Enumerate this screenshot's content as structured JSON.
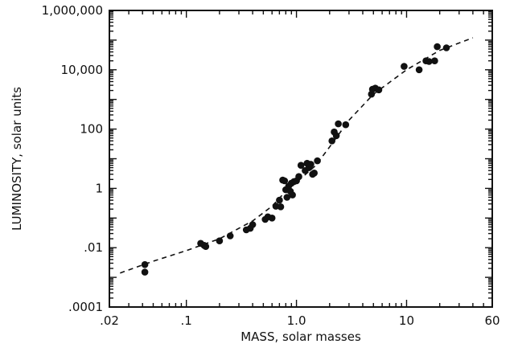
{
  "chart_data": {
    "type": "scatter",
    "title": "",
    "xlabel": "MASS, solar masses",
    "ylabel": "LUMINOSITY, solar units",
    "xscale": "log",
    "yscale": "log",
    "xlim": [
      0.02,
      60
    ],
    "ylim": [
      0.0001,
      1000000
    ],
    "x_ticks": [
      {
        "value": 0.02,
        "label": ".02"
      },
      {
        "value": 0.1,
        "label": ".1"
      },
      {
        "value": 1,
        "label": "1.0"
      },
      {
        "value": 10,
        "label": "10"
      },
      {
        "value": 60,
        "label": "60"
      }
    ],
    "y_ticks": [
      {
        "value": 0.0001,
        "label": ".0001"
      },
      {
        "value": 0.01,
        "label": ".01"
      },
      {
        "value": 1,
        "label": "1"
      },
      {
        "value": 100,
        "label": "100"
      },
      {
        "value": 10000,
        "label": "10,000"
      },
      {
        "value": 1000000,
        "label": "1,000,000"
      }
    ],
    "grid": false,
    "series": [
      {
        "style": "filled-dots",
        "color": "#111111",
        "points": [
          [
            0.042,
            0.0027
          ],
          [
            0.042,
            0.0015
          ],
          [
            0.135,
            0.014
          ],
          [
            0.145,
            0.012
          ],
          [
            0.15,
            0.011
          ],
          [
            0.2,
            0.017
          ],
          [
            0.25,
            0.025
          ],
          [
            0.35,
            0.04
          ],
          [
            0.38,
            0.045
          ],
          [
            0.4,
            0.06
          ],
          [
            0.52,
            0.09
          ],
          [
            0.55,
            0.11
          ],
          [
            0.6,
            0.1
          ],
          [
            0.65,
            0.25
          ],
          [
            0.7,
            0.4
          ],
          [
            0.72,
            0.24
          ],
          [
            0.75,
            1.9
          ],
          [
            0.78,
            1.8
          ],
          [
            0.8,
            0.9
          ],
          [
            0.82,
            0.5
          ],
          [
            0.85,
            1.2
          ],
          [
            0.88,
            0.8
          ],
          [
            0.9,
            1.5
          ],
          [
            0.92,
            0.6
          ],
          [
            0.95,
            1.7
          ],
          [
            1.0,
            1.8
          ],
          [
            1.05,
            2.5
          ],
          [
            1.1,
            6.0
          ],
          [
            1.2,
            4.0
          ],
          [
            1.25,
            7.0
          ],
          [
            1.3,
            5.0
          ],
          [
            1.35,
            6.5
          ],
          [
            1.4,
            3.0
          ],
          [
            1.45,
            3.3
          ],
          [
            1.55,
            8.5
          ],
          [
            2.1,
            40.0
          ],
          [
            2.2,
            80.0
          ],
          [
            2.3,
            60.0
          ],
          [
            2.4,
            150.0
          ],
          [
            2.8,
            140.0
          ],
          [
            4.8,
            1500.0
          ],
          [
            4.9,
            2200.0
          ],
          [
            5.2,
            2400.0
          ],
          [
            5.6,
            2100.0
          ],
          [
            9.5,
            13000.0
          ],
          [
            13.0,
            10000.0
          ],
          [
            15.0,
            20000.0
          ],
          [
            16.0,
            19000.0
          ],
          [
            18.0,
            20000.0
          ],
          [
            19.0,
            60000.0
          ],
          [
            23.0,
            55000.0
          ]
        ]
      },
      {
        "style": "dashed-line",
        "color": "#111111",
        "points": [
          [
            0.025,
            0.0014
          ],
          [
            0.05,
            0.0035
          ],
          [
            0.1,
            0.008
          ],
          [
            0.2,
            0.02
          ],
          [
            0.4,
            0.08
          ],
          [
            0.6,
            0.25
          ],
          [
            0.8,
            0.8
          ],
          [
            1.0,
            1.6
          ],
          [
            1.5,
            6.0
          ],
          [
            2.0,
            25.0
          ],
          [
            3.0,
            200.0
          ],
          [
            5.0,
            1500.0
          ],
          [
            10.0,
            10000.0
          ],
          [
            20.0,
            45000.0
          ],
          [
            40.0,
            120000.0
          ]
        ]
      }
    ]
  }
}
